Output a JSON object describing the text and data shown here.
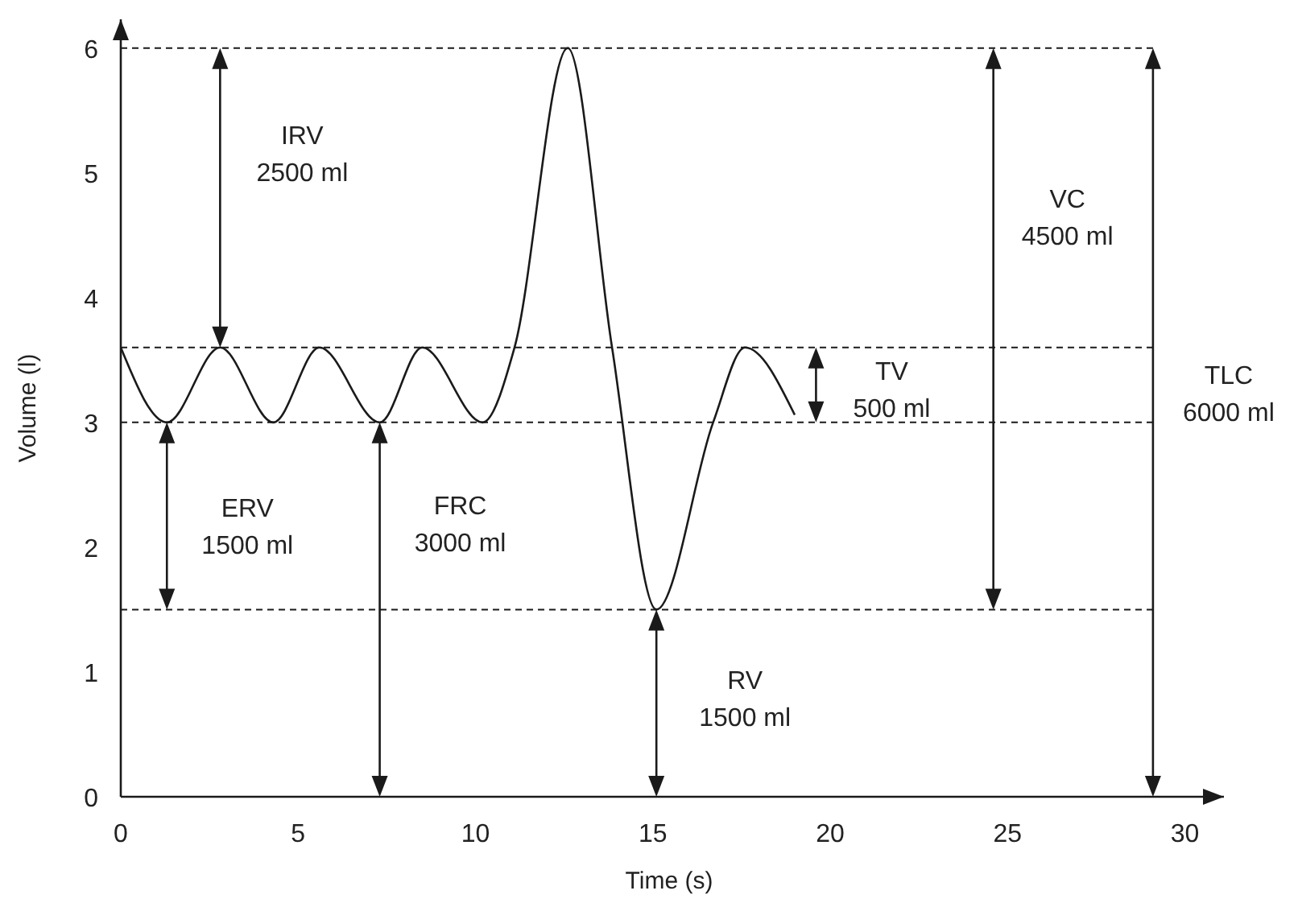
{
  "chart_data": {
    "type": "line",
    "xlabel": "Time (s)",
    "ylabel": "Volume (l)",
    "x": [
      0,
      1.3,
      2.8,
      4.3,
      5.6,
      7.3,
      8.5,
      10.2,
      11.1,
      12.6,
      13.85,
      15.1,
      16.7,
      17.6,
      19.0
    ],
    "series": [
      {
        "color": "#1a1a1a",
        "values": [
          3.6,
          3.0,
          3.6,
          3.0,
          3.6,
          3.0,
          3.6,
          3.0,
          3.6,
          6.0,
          3.6,
          1.5,
          3.0,
          3.6,
          3.06
        ]
      }
    ],
    "xlim": [
      0,
      31.1
    ],
    "ylim": [
      0,
      6.23
    ],
    "xticks": [
      0,
      5,
      10,
      15,
      20,
      25,
      30
    ],
    "yticks": [
      0,
      1,
      2,
      3,
      4,
      5,
      6
    ],
    "grid": false,
    "marker": "none",
    "line_style": "solid",
    "ref_lines": [
      {
        "axis": "y",
        "value": 6,
        "line_style": "dashed",
        "color": "#1a1a1a"
      },
      {
        "axis": "y",
        "value": 3.6,
        "line_style": "dashed",
        "color": "#1a1a1a"
      },
      {
        "axis": "y",
        "value": 3,
        "line_style": "dashed",
        "color": "#1a1a1a"
      },
      {
        "axis": "y",
        "value": 1.5,
        "line_style": "dashed",
        "color": "#1a1a1a"
      }
    ],
    "annotations": [
      "IRV\n2500 ml",
      "ERV\n1500 ml",
      "FRC\n3000 ml",
      "RV\n1500 ml",
      "TV\n500 ml",
      "VC\n4500 ml",
      "TLC\n6000 ml"
    ]
  }
}
